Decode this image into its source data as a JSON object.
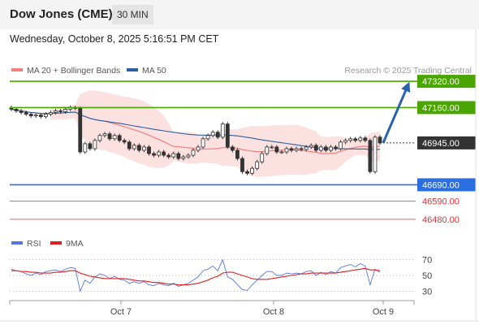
{
  "instrument": "Dow Jones (CME)",
  "timeframe": "30 MIN",
  "datetime": "Wednesday, October 8, 2025 5:16:51 PM CET",
  "colors": {
    "price_box_last": "#333333",
    "resistance": "#4aa500",
    "support": "#2a6ee0",
    "secondary_support": "#e03030",
    "ma20": "#f08080",
    "ma50": "#2a5fa0",
    "rsi": "#5577dd",
    "rsi_ma": "#e02020",
    "arrow": "#2a62b0"
  },
  "chart_data": [
    {
      "type": "candlestick",
      "legend": [
        {
          "label": "MA 20 + Bollinger Bands",
          "color": "#f08080"
        },
        {
          "label": "MA 50",
          "color": "#2a5fa0"
        }
      ],
      "legend_placement": "top-left",
      "watermark": "Research © 2025 Trading Central",
      "ylim": [
        46420,
        47360
      ],
      "price_levels": [
        {
          "label": "47320.00",
          "value": 47320,
          "kind": "resistance"
        },
        {
          "label": "47160.00",
          "value": 47160,
          "kind": "resistance"
        },
        {
          "label": "46945.00",
          "value": 46945,
          "kind": "last"
        },
        {
          "label": "46690.00",
          "value": 46690,
          "kind": "support"
        },
        {
          "label": "46590.00",
          "value": 46590,
          "kind": "secondary"
        },
        {
          "label": "46480.00",
          "value": 46480,
          "kind": "secondary"
        }
      ],
      "ohlc_close_trend": [
        47150,
        47140,
        47130,
        47120,
        47110,
        47115,
        47105,
        47120,
        47130,
        47140,
        47135,
        47150,
        47160,
        47155,
        46890,
        46940,
        46910,
        46960,
        46990,
        47000,
        46970,
        46990,
        46960,
        46950,
        46910,
        46930,
        46900,
        46920,
        46880,
        46870,
        46890,
        46870,
        46860,
        46880,
        46850,
        46860,
        46870,
        46900,
        46920,
        46970,
        46990,
        47010,
        46980,
        47060,
        46920,
        46900,
        46850,
        46770,
        46760,
        46790,
        46830,
        46880,
        46920,
        46920,
        46890,
        46890,
        46910,
        46900,
        46910,
        46905,
        46920,
        46930,
        46900,
        46920,
        46900,
        46920,
        46910,
        46950,
        46960,
        46970,
        46960,
        46975,
        46960,
        46770,
        46980,
        46945
      ],
      "projection": {
        "from": 46945,
        "to": 47320
      }
    },
    {
      "type": "line",
      "legend": [
        {
          "label": "RSI",
          "color": "#5577dd"
        },
        {
          "label": "9MA",
          "color": "#e02020"
        }
      ],
      "legend_placement": "top-left",
      "ylim": [
        20,
        80
      ],
      "yticks": [
        70,
        50,
        30
      ],
      "series": [
        {
          "name": "RSI",
          "values": [
            58,
            56,
            55,
            52,
            50,
            53,
            51,
            55,
            56,
            57,
            55,
            58,
            60,
            59,
            30,
            44,
            40,
            48,
            52,
            50,
            46,
            49,
            45,
            44,
            40,
            42,
            40,
            42,
            38,
            37,
            40,
            38,
            37,
            40,
            36,
            38,
            40,
            44,
            48,
            56,
            58,
            62,
            56,
            70,
            48,
            45,
            38,
            32,
            31,
            38,
            44,
            50,
            55,
            55,
            50,
            50,
            53,
            52,
            53,
            52,
            55,
            56,
            50,
            54,
            51,
            55,
            53,
            60,
            62,
            64,
            61,
            65,
            62,
            38,
            58,
            54
          ]
        },
        {
          "name": "9MA",
          "values": [
            56,
            56,
            55,
            55,
            54,
            54,
            53,
            53,
            53,
            54,
            54,
            55,
            56,
            56,
            53,
            51,
            49,
            48,
            47,
            46,
            46,
            46,
            46,
            46,
            45,
            44,
            43,
            43,
            42,
            41,
            41,
            40,
            39,
            39,
            38,
            38,
            38,
            39,
            40,
            42,
            44,
            47,
            49,
            53,
            54,
            54,
            52,
            50,
            48,
            46,
            45,
            45,
            45,
            46,
            47,
            48,
            49,
            50,
            51,
            52,
            52,
            53,
            53,
            53,
            53,
            53,
            53,
            54,
            55,
            56,
            57,
            58,
            59,
            57,
            57,
            56
          ]
        }
      ],
      "x_ticks": [
        "Oct 7",
        "Oct 8",
        "Oct 9"
      ]
    }
  ]
}
